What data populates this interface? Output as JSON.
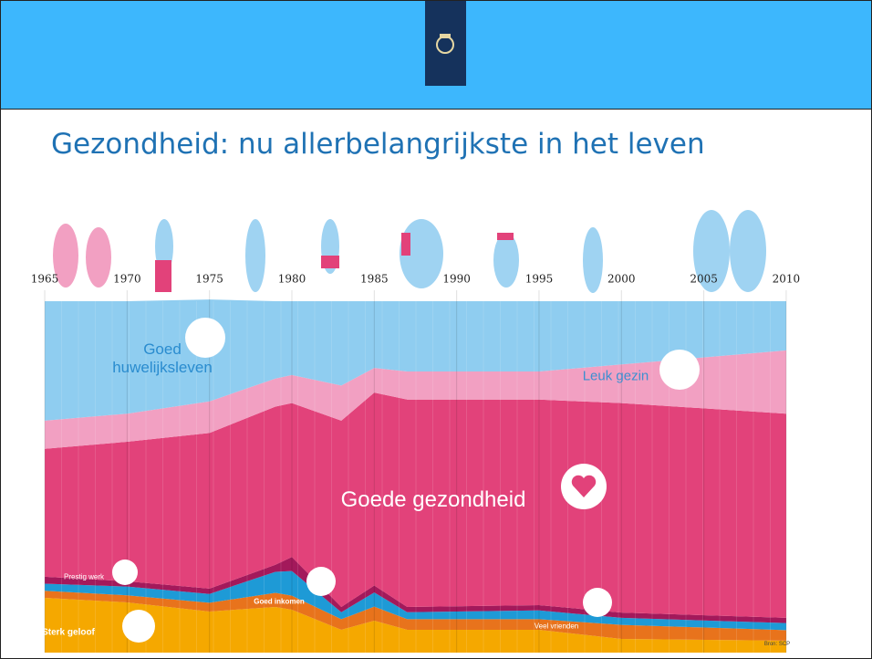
{
  "chart_data": {
    "type": "stacked-area",
    "title": "Gezondheid: nu allerbelangrijkste in het leven",
    "source": "Bron: SCP",
    "x": [
      1965,
      1970,
      1975,
      1979,
      1980,
      1983,
      1985,
      1987,
      1995,
      2000,
      2010
    ],
    "xlim": [
      1964.5,
      2011
    ],
    "xticks": [
      1965,
      1970,
      1975,
      1980,
      1985,
      1990,
      1995,
      2000,
      2005,
      2010
    ],
    "ylim": [
      0,
      100
    ],
    "series": [
      {
        "name": "Sterk geloof",
        "color": "#f5a800",
        "values": [
          15.6,
          14.3,
          11.7,
          13,
          12.2,
          6.5,
          9.1,
          6.5,
          6.5,
          3.9,
          3.4
        ]
      },
      {
        "name": "Veel vrienden",
        "color": "#e8731c",
        "values": [
          2,
          2,
          2.5,
          4,
          4,
          3,
          4,
          3,
          3,
          4,
          3
        ]
      },
      {
        "name": "Goed inkomen",
        "color": "#1e9ad6",
        "values": [
          2,
          2.5,
          2.5,
          6,
          7,
          2,
          4,
          2,
          2.5,
          2,
          2
        ]
      },
      {
        "name": "Prestig werk",
        "color": "#a3195b",
        "values": [
          2,
          1.5,
          1.5,
          2,
          4,
          1.5,
          2,
          1.5,
          1.5,
          1.5,
          1.5
        ]
      },
      {
        "name": "Goede gezondheid",
        "color": "#e2427a",
        "values": [
          36.4,
          39.7,
          44.3,
          45,
          43.8,
          53,
          54.9,
          59,
          58.5,
          59.6,
          58.1
        ]
      },
      {
        "name": "Leuk gezin",
        "color": "#f2a0c2",
        "values": [
          8,
          8,
          9,
          8,
          8,
          10,
          7,
          8,
          8,
          11,
          18
        ]
      },
      {
        "name": "Goed huwelijksleven",
        "color": "#8fcdf0",
        "values": [
          34,
          32,
          29,
          22,
          21,
          24,
          19,
          20,
          20,
          18,
          14
        ]
      }
    ]
  }
}
